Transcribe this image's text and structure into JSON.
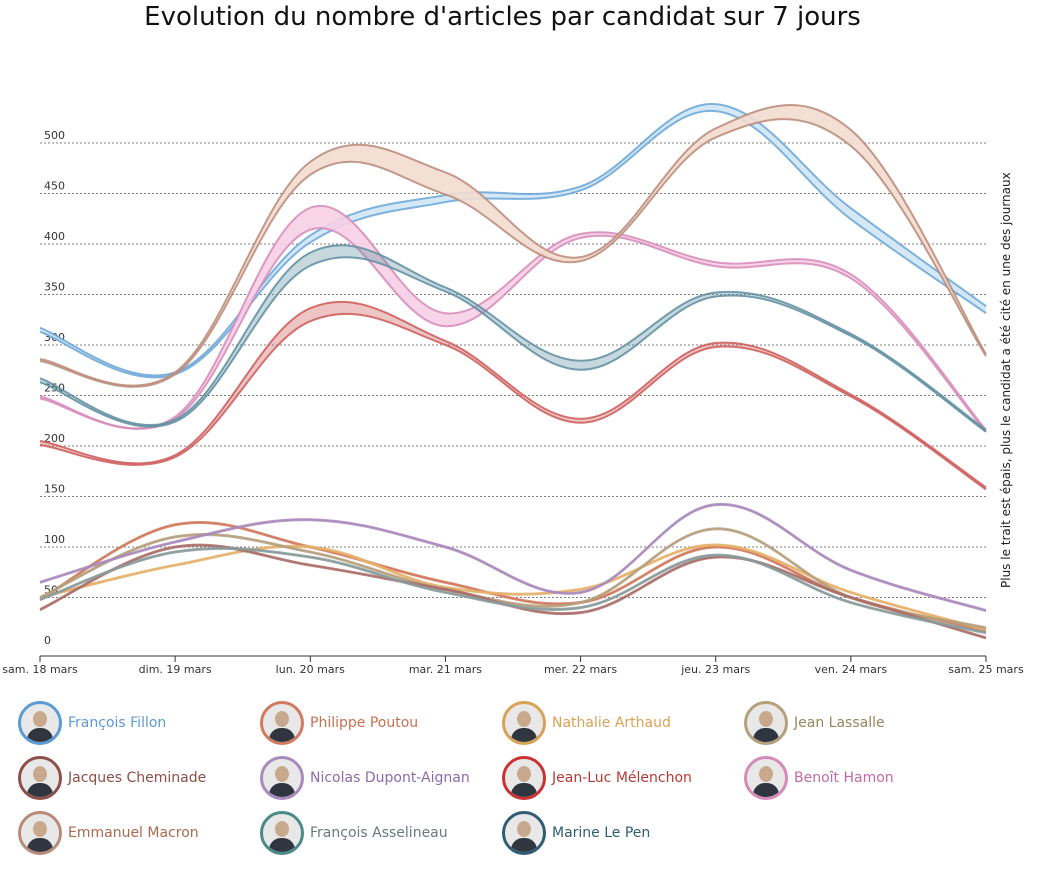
{
  "chart_data": {
    "type": "line",
    "title": "Evolution du nombre d'articles par candidat sur 7 jours",
    "ylabel": "Plus le trait est épais, plus le candidat a été cité en une des journaux",
    "xlabel": "",
    "categories": [
      "sam. 18 mars",
      "dim. 19 mars",
      "lun. 20 mars",
      "mar. 21 mars",
      "mer. 22 mars",
      "jeu. 23 mars",
      "ven. 24 mars",
      "sam. 25 mars"
    ],
    "yticks": [
      0,
      50,
      100,
      150,
      200,
      250,
      300,
      350,
      400,
      450,
      500
    ],
    "ylim": [
      0,
      500
    ],
    "grid": true,
    "series": [
      {
        "name": "François Fillon",
        "color": "#6aa6d6",
        "fill": "#cfe6f6",
        "values": [
          315,
          272,
          405,
          445,
          455,
          535,
          430,
          335
        ],
        "thickness": [
          4,
          2,
          7,
          7,
          4,
          7,
          11,
          7
        ]
      },
      {
        "name": "Philippe Poutou",
        "color": "#d07a5e",
        "values": [
          48,
          122,
          100,
          65,
          45,
          100,
          50,
          17
        ],
        "thickness": [
          1,
          1,
          1,
          1,
          1,
          1,
          1,
          1
        ]
      },
      {
        "name": "Nathalie Arthaud",
        "color": "#e5b06a",
        "values": [
          50,
          82,
          100,
          60,
          58,
          102,
          55,
          18
        ],
        "thickness": [
          1,
          1,
          1,
          1,
          1,
          1,
          1,
          1
        ]
      },
      {
        "name": "Jean Lassalle",
        "color": "#b5a07c",
        "values": [
          50,
          110,
          95,
          58,
          45,
          118,
          50,
          20
        ],
        "thickness": [
          1,
          1,
          1,
          1,
          1,
          1,
          1,
          1
        ]
      },
      {
        "name": "Jacques Cheminade",
        "color": "#a96f6a",
        "values": [
          38,
          100,
          82,
          58,
          35,
          90,
          50,
          10
        ],
        "thickness": [
          1,
          1,
          1,
          1,
          1,
          1,
          1,
          1
        ]
      },
      {
        "name": "Nicolas Dupont-Aignan",
        "color": "#a98abc",
        "values": [
          65,
          105,
          127,
          100,
          55,
          142,
          77,
          37
        ],
        "thickness": [
          1,
          1,
          1,
          1,
          1,
          1,
          1,
          1
        ]
      },
      {
        "name": "Jean-Luc Mélenchon",
        "color": "#cc5a58",
        "values": [
          203,
          190,
          330,
          302,
          225,
          300,
          250,
          158
        ],
        "thickness": [
          4,
          2,
          13,
          4,
          4,
          4,
          2,
          2
        ]
      },
      {
        "name": "Benoît Hamon",
        "color": "#d68ab8",
        "fill": "#f6cfe6",
        "values": [
          248,
          228,
          425,
          325,
          408,
          380,
          368,
          215
        ],
        "thickness": [
          2,
          2,
          22,
          13,
          4,
          4,
          4,
          2
        ]
      },
      {
        "name": "Emmanuel Macron",
        "color": "#b88a78",
        "fill": "#f3dccf",
        "values": [
          285,
          272,
          475,
          460,
          385,
          510,
          505,
          290
        ],
        "thickness": [
          2,
          2,
          13,
          22,
          4,
          9,
          16,
          2
        ]
      },
      {
        "name": "François Asselineau",
        "color": "#8a9a9a",
        "values": [
          48,
          95,
          90,
          55,
          40,
          92,
          45,
          15
        ],
        "thickness": [
          1,
          1,
          1,
          1,
          1,
          1,
          1,
          1
        ]
      },
      {
        "name": "Marine Le Pen",
        "color": "#5e8ea0",
        "values": [
          265,
          225,
          385,
          355,
          280,
          350,
          310,
          215
        ],
        "thickness": [
          4,
          2,
          13,
          4,
          9,
          4,
          2,
          2
        ]
      }
    ]
  },
  "legend": {
    "items": [
      {
        "name": "François Fillon",
        "color": "#5b9bd5",
        "border": "#5b9bd5"
      },
      {
        "name": "Philippe Poutou",
        "color": "#c8704f",
        "border": "#d07a5e"
      },
      {
        "name": "Nathalie Arthaud",
        "color": "#d9a255",
        "border": "#d9a255"
      },
      {
        "name": "Jean Lassalle",
        "color": "#9a8560",
        "border": "#b5a07c"
      },
      {
        "name": "Jacques Cheminade",
        "color": "#8e4e49",
        "border": "#8e4e49"
      },
      {
        "name": "Nicolas Dupont-Aignan",
        "color": "#8f6aa8",
        "border": "#a98abc"
      },
      {
        "name": "Jean-Luc Mélenchon",
        "color": "#b33a38",
        "border": "#cc3030"
      },
      {
        "name": "Benoît Hamon",
        "color": "#c26aa6",
        "border": "#d68ab8"
      },
      {
        "name": "Emmanuel Macron",
        "color": "#a86a50",
        "border": "#b88a78"
      },
      {
        "name": "François Asselineau",
        "color": "#6a7a7a",
        "border": "#4a8a88"
      },
      {
        "name": "Marine Le Pen",
        "color": "#2f5d75",
        "border": "#2f5d75"
      }
    ]
  }
}
